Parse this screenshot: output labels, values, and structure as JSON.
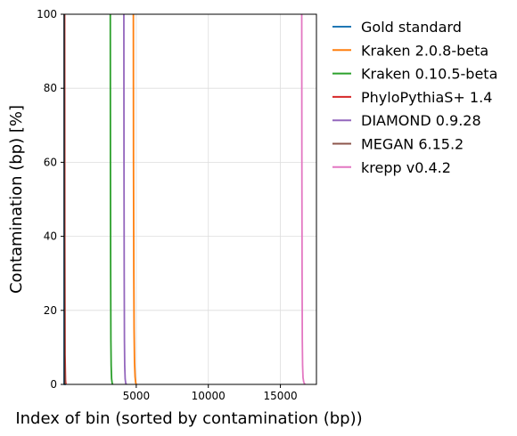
{
  "chart_data": {
    "type": "line",
    "title": "",
    "xlabel": "Index of bin (sorted by contamination (bp))",
    "ylabel": "Contamination (bp) [%]",
    "xlim": [
      0,
      17500
    ],
    "ylim": [
      0,
      100
    ],
    "x_ticks": [
      5000,
      10000,
      15000
    ],
    "x_tick_labels": [
      "5000",
      "10000",
      "15000"
    ],
    "y_ticks": [
      0,
      20,
      40,
      60,
      80,
      100
    ],
    "y_tick_labels": [
      "0",
      "20",
      "40",
      "60",
      "80",
      "100"
    ],
    "grid": true,
    "legend_position": "outside-right",
    "series": [
      {
        "name": "Gold standard",
        "color": "#1f77b4",
        "points": [
          [
            0,
            100
          ],
          [
            0,
            0
          ],
          [
            120,
            0
          ]
        ]
      },
      {
        "name": "Kraken 2.0.8-beta",
        "color": "#ff7f0e",
        "points": [
          [
            4800,
            100
          ],
          [
            4810,
            60
          ],
          [
            4830,
            30
          ],
          [
            4850,
            15
          ],
          [
            4880,
            6
          ],
          [
            4920,
            2
          ],
          [
            4960,
            0.5
          ],
          [
            5000,
            0
          ]
        ]
      },
      {
        "name": "Kraken 0.10.5-beta",
        "color": "#2ca02c",
        "points": [
          [
            3200,
            100
          ],
          [
            3210,
            60
          ],
          [
            3225,
            30
          ],
          [
            3240,
            12
          ],
          [
            3260,
            5
          ],
          [
            3290,
            1.5
          ],
          [
            3330,
            0.3
          ],
          [
            3370,
            0
          ]
        ]
      },
      {
        "name": "PhyloPythiaS+ 1.4",
        "color": "#d62728",
        "points": [
          [
            30,
            100
          ],
          [
            40,
            40
          ],
          [
            60,
            8
          ],
          [
            90,
            1
          ],
          [
            120,
            0
          ]
        ]
      },
      {
        "name": "DIAMOND 0.9.28",
        "color": "#9467bd",
        "points": [
          [
            4140,
            100
          ],
          [
            4150,
            60
          ],
          [
            4165,
            30
          ],
          [
            4180,
            12
          ],
          [
            4200,
            5
          ],
          [
            4230,
            1.5
          ],
          [
            4270,
            0.3
          ],
          [
            4320,
            0
          ]
        ]
      },
      {
        "name": "MEGAN 6.15.2",
        "color": "#8c564b",
        "points": [
          [
            10,
            100
          ],
          [
            15,
            50
          ],
          [
            30,
            6
          ],
          [
            60,
            0
          ]
        ]
      },
      {
        "name": "krepp v0.4.2",
        "color": "#e377c2",
        "points": [
          [
            16480,
            100
          ],
          [
            16490,
            60
          ],
          [
            16505,
            30
          ],
          [
            16520,
            12
          ],
          [
            16540,
            5
          ],
          [
            16570,
            1.8
          ],
          [
            16620,
            0.6
          ],
          [
            16700,
            0
          ]
        ]
      }
    ]
  }
}
